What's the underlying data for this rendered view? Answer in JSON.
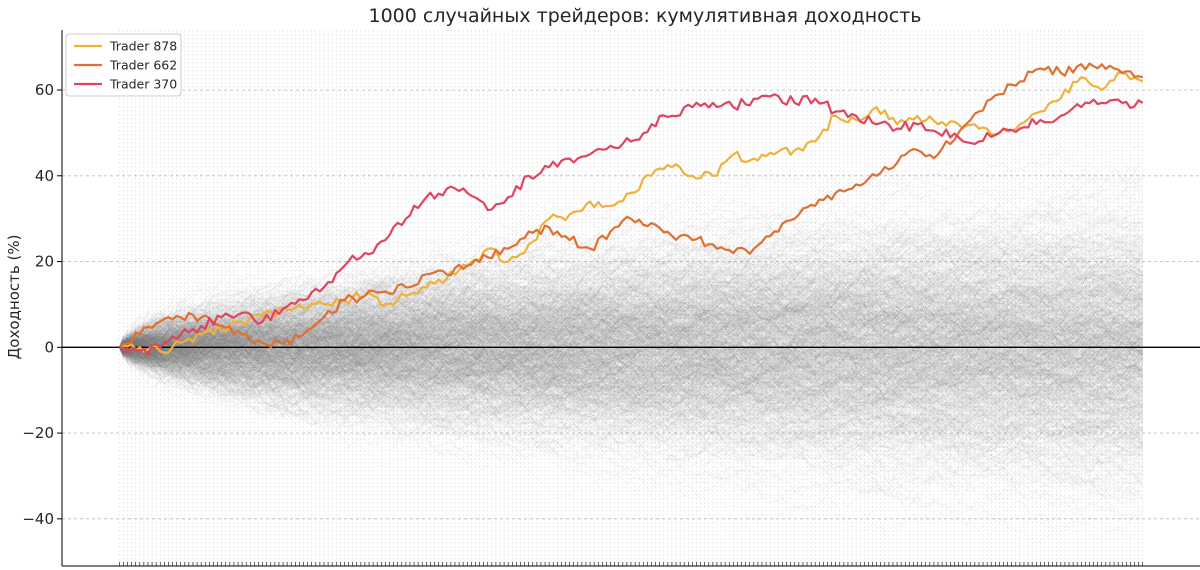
{
  "chart_data": {
    "type": "line",
    "title": "1000 случайных трейдеров: кумулятивная доходность",
    "xlabel": "",
    "ylabel": "Доходность (%)",
    "ylim": [
      -51,
      74
    ],
    "xlim": [
      -14,
      264
    ],
    "yticks": [
      -40,
      -20,
      0,
      20,
      40,
      60
    ],
    "ytick_labels": [
      "−40",
      "−20",
      "0",
      "20",
      "40",
      "60"
    ],
    "grid": true,
    "legend_position": "top-left",
    "zero_line": true,
    "background_traders": {
      "count": 1000,
      "color": "#808080",
      "band_5_95_approx": [
        {
          "x": 0,
          "low": -1,
          "high": 1
        },
        {
          "x": 50,
          "low": -13,
          "high": 13
        },
        {
          "x": 100,
          "low": -19,
          "high": 21
        },
        {
          "x": 150,
          "low": -23,
          "high": 25
        },
        {
          "x": 200,
          "low": -27,
          "high": 28
        },
        {
          "x": 250,
          "low": -30,
          "high": 31
        }
      ]
    },
    "series": [
      {
        "name": "Trader 878",
        "color": "#f0b13a",
        "x": [
          0,
          5,
          10,
          15,
          20,
          25,
          30,
          35,
          40,
          45,
          50,
          55,
          60,
          65,
          70,
          75,
          80,
          85,
          90,
          95,
          100,
          105,
          110,
          115,
          120,
          125,
          130,
          135,
          140,
          145,
          150,
          155,
          160,
          165,
          170,
          175,
          180,
          185,
          190,
          195,
          200,
          205,
          210,
          215,
          220,
          225,
          230,
          235,
          240,
          245,
          250
        ],
        "values": [
          0,
          0,
          -1,
          1,
          3,
          4,
          6,
          7,
          9,
          9,
          10,
          11,
          12,
          10,
          12,
          14,
          16,
          19,
          23,
          20,
          24,
          30,
          31,
          34,
          33,
          36,
          40,
          42,
          40,
          40,
          45,
          44,
          45,
          46,
          48,
          54,
          53,
          56,
          52,
          54,
          52,
          52,
          51,
          50,
          52,
          55,
          58,
          63,
          60,
          64,
          62
        ]
      },
      {
        "name": "Trader 662",
        "color": "#df6f32",
        "x": [
          0,
          5,
          10,
          15,
          20,
          25,
          30,
          35,
          40,
          45,
          50,
          55,
          60,
          65,
          70,
          75,
          80,
          85,
          90,
          95,
          100,
          105,
          110,
          115,
          120,
          125,
          130,
          135,
          140,
          145,
          150,
          155,
          160,
          165,
          170,
          175,
          180,
          185,
          190,
          195,
          200,
          205,
          210,
          215,
          220,
          225,
          230,
          235,
          240,
          245,
          250
        ],
        "values": [
          0,
          3,
          6,
          7,
          7,
          5,
          3,
          1,
          1,
          3,
          7,
          11,
          12,
          13,
          14,
          17,
          17,
          19,
          21,
          23,
          27,
          28,
          25,
          23,
          27,
          30,
          29,
          26,
          25,
          24,
          22,
          23,
          27,
          30,
          33,
          36,
          38,
          40,
          43,
          46,
          45,
          50,
          55,
          59,
          62,
          65,
          64,
          66,
          66,
          64,
          63
        ]
      },
      {
        "name": "Trader 370",
        "color": "#e0445e",
        "x": [
          0,
          5,
          10,
          15,
          20,
          25,
          30,
          35,
          40,
          45,
          50,
          55,
          60,
          65,
          70,
          75,
          80,
          85,
          90,
          95,
          100,
          105,
          110,
          115,
          120,
          125,
          130,
          135,
          140,
          145,
          150,
          155,
          160,
          165,
          170,
          175,
          180,
          185,
          190,
          195,
          200,
          205,
          210,
          215,
          220,
          225,
          230,
          235,
          240,
          245,
          250
        ],
        "values": [
          0,
          -1,
          0,
          3,
          5,
          7,
          8,
          6,
          9,
          11,
          14,
          19,
          22,
          25,
          30,
          35,
          37,
          36,
          32,
          35,
          40,
          42,
          44,
          45,
          47,
          48,
          52,
          54,
          56,
          57,
          56,
          58,
          59,
          57,
          58,
          55,
          54,
          52,
          51,
          52,
          50,
          49,
          48,
          50,
          51,
          53,
          54,
          56,
          57,
          57,
          57
        ]
      }
    ]
  }
}
